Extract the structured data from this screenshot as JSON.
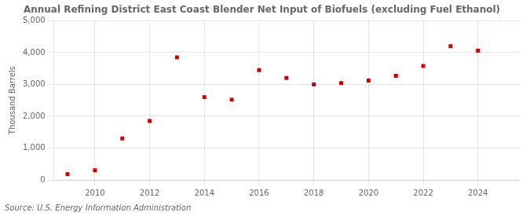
{
  "chart_data": {
    "type": "scatter",
    "title": "Annual Refining District East Coast Blender Net Input of Biofuels (excluding Fuel Ethanol)",
    "y_label": "Thousand Barrels",
    "annotations": [
      "Source: U.S. Energy Information Administration"
    ],
    "x": [
      2009,
      2010,
      2011,
      2012,
      2013,
      2014,
      2015,
      2016,
      2017,
      2018,
      2019,
      2020,
      2021,
      2022,
      2023,
      2024
    ],
    "values": [
      180,
      300,
      1300,
      1850,
      3850,
      2600,
      2520,
      3450,
      3200,
      3000,
      3040,
      3120,
      3270,
      3580,
      4200,
      4060
    ],
    "color": "#cc0000",
    "marker": "square",
    "xlim": [
      2008.5,
      2025.5
    ],
    "xticks": [
      2010,
      2012,
      2014,
      2016,
      2018,
      2020,
      2022,
      2024
    ],
    "ylim": [
      0,
      5000
    ],
    "yticks": [
      0,
      {
        "value": 1000,
        "label": "1,000"
      },
      {
        "value": 2000,
        "label": "2,000"
      },
      {
        "value": 3000,
        "label": "3,000"
      },
      {
        "value": 4000,
        "label": "4,000"
      },
      {
        "value": 5000,
        "label": "5,000"
      }
    ],
    "grid": true
  }
}
